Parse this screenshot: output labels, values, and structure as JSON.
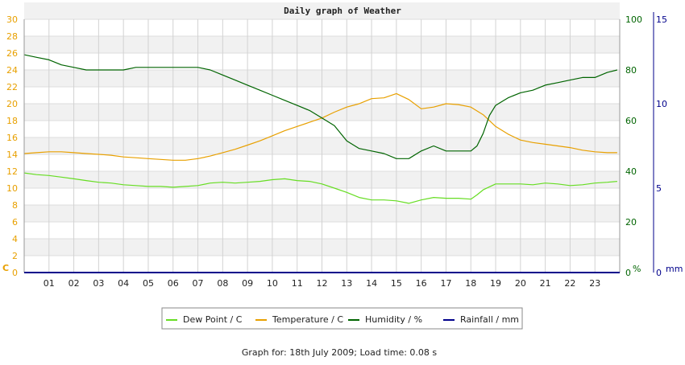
{
  "chart_data": {
    "type": "line",
    "title": "Daily graph of Weather",
    "xlabel": "",
    "x_tick_labels": [
      "01",
      "02",
      "03",
      "04",
      "05",
      "06",
      "07",
      "08",
      "09",
      "10",
      "11",
      "12",
      "13",
      "14",
      "15",
      "16",
      "17",
      "18",
      "19",
      "20",
      "21",
      "22",
      "23"
    ],
    "xlim": [
      0,
      24
    ],
    "axes": {
      "left": {
        "unit_label": "C",
        "ticks": [
          0,
          2,
          4,
          6,
          8,
          10,
          12,
          14,
          16,
          18,
          20,
          22,
          24,
          26,
          28,
          30
        ],
        "ylim": [
          0,
          30
        ],
        "color": "#e8a000"
      },
      "right_inner": {
        "unit_label": "%",
        "ticks": [
          0,
          20,
          40,
          60,
          80,
          100
        ],
        "ylim": [
          0,
          100
        ],
        "color": "#006400"
      },
      "right_outer": {
        "unit_label": "mm",
        "ticks": [
          0,
          5,
          10,
          15
        ],
        "ylim": [
          0,
          15
        ],
        "color": "#00008b"
      }
    },
    "grid": true,
    "legend_position": "bottom",
    "series": [
      {
        "name": "Dew Point / C",
        "axis": "left",
        "color": "#66dd22",
        "x": [
          0,
          0.5,
          1,
          1.5,
          2,
          2.5,
          3,
          3.5,
          4,
          4.5,
          5,
          5.5,
          6,
          6.5,
          7,
          7.5,
          8,
          8.5,
          9,
          9.5,
          10,
          10.5,
          11,
          11.5,
          12,
          12.5,
          13,
          13.5,
          14,
          14.5,
          15,
          15.5,
          16,
          16.5,
          17,
          17.5,
          18,
          18.25,
          18.5,
          19,
          19.5,
          20,
          20.5,
          21,
          21.5,
          22,
          22.5,
          23,
          23.5,
          23.9
        ],
        "y": [
          11.8,
          11.6,
          11.5,
          11.3,
          11.1,
          10.9,
          10.7,
          10.6,
          10.4,
          10.3,
          10.2,
          10.2,
          10.1,
          10.2,
          10.3,
          10.6,
          10.7,
          10.6,
          10.7,
          10.8,
          11.0,
          11.1,
          10.9,
          10.8,
          10.5,
          10.0,
          9.5,
          8.9,
          8.6,
          8.6,
          8.5,
          8.2,
          8.6,
          8.9,
          8.8,
          8.8,
          8.7,
          9.2,
          9.8,
          10.5,
          10.5,
          10.5,
          10.4,
          10.6,
          10.5,
          10.3,
          10.4,
          10.6,
          10.7,
          10.8
        ]
      },
      {
        "name": "Temperature / C",
        "axis": "left",
        "color": "#e8a000",
        "x": [
          0,
          0.5,
          1,
          1.5,
          2,
          2.5,
          3,
          3.5,
          4,
          4.5,
          5,
          5.5,
          6,
          6.5,
          7,
          7.5,
          8,
          8.5,
          9,
          9.5,
          10,
          10.5,
          11,
          11.5,
          12,
          12.5,
          13,
          13.5,
          14,
          14.5,
          15,
          15.5,
          16,
          16.5,
          17,
          17.5,
          18,
          18.5,
          19,
          19.5,
          20,
          20.5,
          21,
          21.5,
          22,
          22.5,
          23,
          23.5,
          23.9
        ],
        "y": [
          14.1,
          14.2,
          14.3,
          14.3,
          14.2,
          14.1,
          14.0,
          13.9,
          13.7,
          13.6,
          13.5,
          13.4,
          13.3,
          13.3,
          13.5,
          13.8,
          14.2,
          14.6,
          15.1,
          15.6,
          16.2,
          16.8,
          17.3,
          17.8,
          18.3,
          19.0,
          19.6,
          20.0,
          20.6,
          20.7,
          21.2,
          20.5,
          19.4,
          19.6,
          20.0,
          19.9,
          19.6,
          18.7,
          17.3,
          16.4,
          15.7,
          15.4,
          15.2,
          15.0,
          14.8,
          14.5,
          14.3,
          14.2,
          14.2
        ]
      },
      {
        "name": "Humidity / %",
        "axis": "right_inner",
        "color": "#006400",
        "x": [
          0,
          0.5,
          1,
          1.5,
          2,
          2.5,
          3,
          3.5,
          4,
          4.5,
          5,
          5.5,
          6,
          6.5,
          7,
          7.5,
          8,
          8.5,
          9,
          9.5,
          10,
          10.5,
          11,
          11.5,
          12,
          12.5,
          13,
          13.5,
          14,
          14.5,
          15,
          15.5,
          16,
          16.5,
          17,
          17.5,
          18,
          18.25,
          18.5,
          18.75,
          19,
          19.5,
          20,
          20.5,
          21,
          21.5,
          22,
          22.5,
          23,
          23.5,
          23.9
        ],
        "y": [
          86,
          85,
          84,
          82,
          81,
          80,
          80,
          80,
          80,
          81,
          81,
          81,
          81,
          81,
          81,
          80,
          78,
          76,
          74,
          72,
          70,
          68,
          66,
          64,
          61,
          58,
          52,
          49,
          48,
          47,
          45,
          45,
          48,
          50,
          48,
          48,
          48,
          50,
          55,
          62,
          66,
          69,
          71,
          72,
          74,
          75,
          76,
          77,
          77,
          79,
          80
        ]
      },
      {
        "name": "Rainfall / mm",
        "axis": "right_outer",
        "color": "#00008b",
        "x": [
          0,
          24
        ],
        "y": [
          0,
          0
        ]
      }
    ]
  },
  "footer": {
    "text": "Graph for: 18th July 2009; Load time: 0.08 s"
  }
}
